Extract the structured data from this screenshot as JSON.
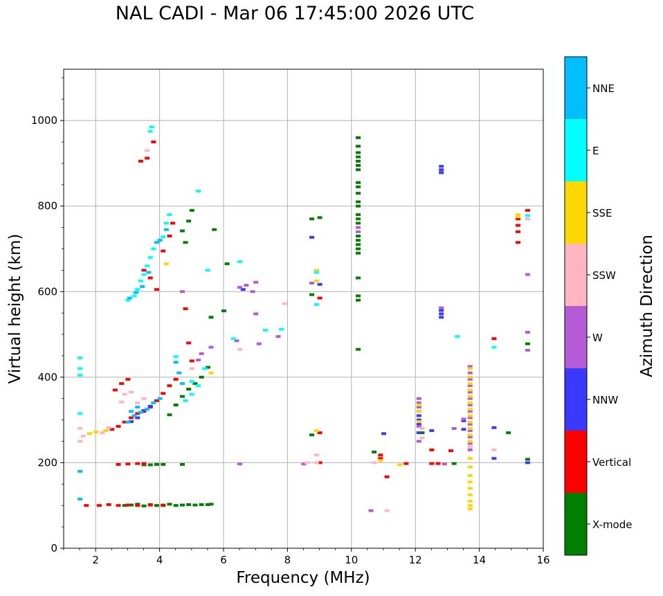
{
  "chart_data": {
    "type": "scatter",
    "title": "NAL CADI - Mar 06 17:45:00 2026 UTC",
    "xlabel": "Frequency (MHz)",
    "ylabel": "Virtual height (km)",
    "xlim": [
      1,
      16
    ],
    "ylim": [
      0,
      1120
    ],
    "xticks": [
      2,
      4,
      6,
      8,
      10,
      12,
      14,
      16
    ],
    "yticks": [
      0,
      200,
      400,
      600,
      800,
      1000
    ],
    "grid": true,
    "colorbar": {
      "label": "Azimuth Direction",
      "categories": [
        "X-mode",
        "Vertical",
        "NNW",
        "W",
        "SSW",
        "SSE",
        "E",
        "NNE"
      ],
      "colors": [
        "#008000",
        "#ff0000",
        "#3a3aff",
        "#b55bd6",
        "#ffb6c1",
        "#ffd700",
        "#00ffff",
        "#00bfff"
      ]
    },
    "series": [
      {
        "name": "X-mode",
        "points": [
          [
            2.9,
            100
          ],
          [
            3.1,
            101
          ],
          [
            3.3,
            103
          ],
          [
            3.5,
            99
          ],
          [
            3.7,
            102
          ],
          [
            3.9,
            100
          ],
          [
            4.1,
            101
          ],
          [
            4.3,
            103
          ],
          [
            4.5,
            100
          ],
          [
            4.7,
            101
          ],
          [
            4.9,
            102
          ],
          [
            5.1,
            101
          ],
          [
            5.3,
            102
          ],
          [
            5.5,
            102
          ],
          [
            5.6,
            103
          ],
          [
            3.5,
            195
          ],
          [
            3.7,
            195
          ],
          [
            3.9,
            196
          ],
          [
            4.1,
            196
          ],
          [
            4.7,
            196
          ],
          [
            4.3,
            312
          ],
          [
            4.5,
            335
          ],
          [
            4.7,
            355
          ],
          [
            4.9,
            372
          ],
          [
            5.1,
            385
          ],
          [
            5.3,
            400
          ],
          [
            5.5,
            423
          ],
          [
            5.6,
            540
          ],
          [
            5.0,
            790
          ],
          [
            4.9,
            765
          ],
          [
            4.7,
            742
          ],
          [
            6.0,
            555
          ],
          [
            10.2,
            465
          ],
          [
            10.2,
            580
          ],
          [
            10.2,
            590
          ],
          [
            10.2,
            632
          ],
          [
            10.2,
            690
          ],
          [
            10.2,
            700
          ],
          [
            10.2,
            710
          ],
          [
            10.2,
            720
          ],
          [
            10.2,
            730
          ],
          [
            10.2,
            760
          ],
          [
            10.2,
            770
          ],
          [
            10.2,
            780
          ],
          [
            10.2,
            800
          ],
          [
            10.2,
            810
          ],
          [
            10.2,
            830
          ],
          [
            10.2,
            845
          ],
          [
            10.2,
            855
          ],
          [
            10.2,
            885
          ],
          [
            10.2,
            895
          ],
          [
            10.2,
            905
          ],
          [
            10.2,
            915
          ],
          [
            10.2,
            925
          ],
          [
            10.2,
            940
          ],
          [
            10.2,
            960
          ],
          [
            8.75,
            265
          ],
          [
            8.75,
            593
          ],
          [
            8.75,
            770
          ],
          [
            9.0,
            773
          ],
          [
            10.7,
            225
          ],
          [
            13.2,
            198
          ],
          [
            14.9,
            270
          ],
          [
            15.5,
            208
          ],
          [
            15.5,
            478
          ],
          [
            5.7,
            745
          ],
          [
            6.1,
            665
          ],
          [
            4.8,
            715
          ],
          [
            12.2,
            270
          ]
        ]
      },
      {
        "name": "Vertical",
        "points": [
          [
            1.7,
            100
          ],
          [
            2.1,
            100
          ],
          [
            2.4,
            102
          ],
          [
            2.7,
            100
          ],
          [
            3.0,
            101
          ],
          [
            3.3,
            100
          ],
          [
            3.7,
            101
          ],
          [
            4.1,
            100
          ],
          [
            2.7,
            196
          ],
          [
            3.0,
            197
          ],
          [
            3.3,
            198
          ],
          [
            3.5,
            198
          ],
          [
            2.5,
            278
          ],
          [
            2.7,
            285
          ],
          [
            2.9,
            295
          ],
          [
            3.1,
            305
          ],
          [
            3.3,
            315
          ],
          [
            3.5,
            320
          ],
          [
            3.7,
            330
          ],
          [
            3.9,
            345
          ],
          [
            4.1,
            362
          ],
          [
            4.3,
            380
          ],
          [
            4.5,
            395
          ],
          [
            2.6,
            370
          ],
          [
            2.8,
            385
          ],
          [
            3.0,
            395
          ],
          [
            3.9,
            605
          ],
          [
            3.7,
            632
          ],
          [
            3.5,
            650
          ],
          [
            4.1,
            695
          ],
          [
            4.3,
            730
          ],
          [
            4.4,
            760
          ],
          [
            3.4,
            905
          ],
          [
            3.6,
            912
          ],
          [
            3.8,
            950
          ],
          [
            4.8,
            560
          ],
          [
            4.9,
            480
          ],
          [
            5.0,
            438
          ],
          [
            9.0,
            585
          ],
          [
            9.0,
            270
          ],
          [
            9.0,
            200
          ],
          [
            10.9,
            218
          ],
          [
            11.1,
            167
          ],
          [
            10.9,
            210
          ],
          [
            12.5,
            230
          ],
          [
            12.5,
            198
          ],
          [
            13.1,
            228
          ],
          [
            14.45,
            490
          ],
          [
            15.2,
            715
          ],
          [
            15.2,
            740
          ],
          [
            15.2,
            755
          ],
          [
            15.2,
            770
          ],
          [
            15.5,
            790
          ],
          [
            11.7,
            198
          ],
          [
            12.7,
            198
          ]
        ]
      },
      {
        "name": "NNW",
        "points": [
          [
            3.1,
            296
          ],
          [
            3.3,
            305
          ],
          [
            3.5,
            322
          ],
          [
            3.7,
            332
          ],
          [
            12.1,
            270
          ],
          [
            12.1,
            290
          ],
          [
            12.1,
            300
          ],
          [
            12.1,
            310
          ],
          [
            12.5,
            275
          ],
          [
            12.8,
            540
          ],
          [
            12.8,
            548
          ],
          [
            12.8,
            556
          ],
          [
            12.8,
            878
          ],
          [
            12.8,
            885
          ],
          [
            12.8,
            893
          ],
          [
            13.5,
            298
          ],
          [
            13.5,
            278
          ],
          [
            14.45,
            210
          ],
          [
            14.45,
            282
          ],
          [
            11.0,
            268
          ],
          [
            6.6,
            605
          ],
          [
            9.0,
            617
          ],
          [
            8.75,
            727
          ],
          [
            15.5,
            200
          ]
        ]
      },
      {
        "name": "W",
        "points": [
          [
            12.8,
            562
          ],
          [
            12.1,
            350
          ],
          [
            12.1,
            340
          ],
          [
            12.1,
            330
          ],
          [
            12.1,
            320
          ],
          [
            12.1,
            285
          ],
          [
            12.1,
            250
          ],
          [
            13.7,
            425
          ],
          [
            13.7,
            410
          ],
          [
            13.7,
            395
          ],
          [
            13.7,
            380
          ],
          [
            13.7,
            365
          ],
          [
            13.7,
            350
          ],
          [
            13.7,
            335
          ],
          [
            13.7,
            320
          ],
          [
            13.7,
            305
          ],
          [
            13.7,
            290
          ],
          [
            13.7,
            275
          ],
          [
            13.7,
            260
          ],
          [
            13.7,
            245
          ],
          [
            13.7,
            230
          ],
          [
            13.5,
            302
          ],
          [
            10.2,
            740
          ],
          [
            10.2,
            750
          ],
          [
            6.5,
            610
          ],
          [
            6.7,
            615
          ],
          [
            6.9,
            600
          ],
          [
            7.0,
            622
          ],
          [
            6.4,
            485
          ],
          [
            7.1,
            478
          ],
          [
            7.7,
            495
          ],
          [
            7.0,
            548
          ],
          [
            5.2,
            440
          ],
          [
            5.3,
            455
          ],
          [
            5.6,
            470
          ],
          [
            8.75,
            620
          ],
          [
            10.6,
            88
          ],
          [
            15.5,
            505
          ],
          [
            15.5,
            463
          ],
          [
            15.5,
            640
          ],
          [
            13.2,
            280
          ],
          [
            6.5,
            197
          ],
          [
            8.5,
            197
          ],
          [
            12.9,
            197
          ],
          [
            4.7,
            600
          ]
        ]
      },
      {
        "name": "SSW",
        "points": [
          [
            1.6,
            262
          ],
          [
            2.2,
            270
          ],
          [
            2.4,
            282
          ],
          [
            2.9,
            360
          ],
          [
            3.1,
            365
          ],
          [
            3.3,
            340
          ],
          [
            3.5,
            350
          ],
          [
            2.8,
            342
          ],
          [
            8.9,
            218
          ],
          [
            8.9,
            200
          ],
          [
            11.1,
            88
          ],
          [
            10.7,
            200
          ],
          [
            13.7,
            237
          ],
          [
            14.45,
            230
          ],
          [
            15.5,
            770
          ],
          [
            7.9,
            572
          ],
          [
            6.5,
            465
          ],
          [
            5.0,
            420
          ],
          [
            1.5,
            280
          ],
          [
            1.5,
            250
          ],
          [
            12.2,
            258
          ],
          [
            12.2,
            280
          ],
          [
            8.6,
            200
          ],
          [
            3.6,
            930
          ]
        ]
      },
      {
        "name": "SSE",
        "points": [
          [
            1.8,
            268
          ],
          [
            2.0,
            272
          ],
          [
            2.3,
            275
          ],
          [
            10.9,
            205
          ],
          [
            11.5,
            195
          ],
          [
            12.1,
            320
          ],
          [
            12.1,
            335
          ],
          [
            12.1,
            296
          ],
          [
            13.7,
            420
          ],
          [
            13.7,
            400
          ],
          [
            13.7,
            385
          ],
          [
            13.7,
            370
          ],
          [
            13.7,
            355
          ],
          [
            13.7,
            340
          ],
          [
            13.7,
            325
          ],
          [
            13.7,
            310
          ],
          [
            13.7,
            295
          ],
          [
            13.7,
            280
          ],
          [
            13.7,
            265
          ],
          [
            13.7,
            250
          ],
          [
            13.7,
            210
          ],
          [
            13.7,
            190
          ],
          [
            13.7,
            170
          ],
          [
            13.7,
            155
          ],
          [
            13.7,
            140
          ],
          [
            13.7,
            125
          ],
          [
            13.7,
            110
          ],
          [
            13.7,
            100
          ],
          [
            13.7,
            92
          ],
          [
            5.6,
            410
          ],
          [
            8.9,
            625
          ],
          [
            8.9,
            650
          ],
          [
            8.9,
            275
          ],
          [
            15.2,
            775
          ],
          [
            15.2,
            780
          ],
          [
            4.2,
            665
          ]
        ]
      },
      {
        "name": "E",
        "points": [
          [
            3.8,
            700
          ],
          [
            3.7,
            680
          ],
          [
            3.6,
            660
          ],
          [
            3.5,
            640
          ],
          [
            3.4,
            625
          ],
          [
            3.3,
            605
          ],
          [
            3.2,
            590
          ],
          [
            3.0,
            580
          ],
          [
            4.1,
            728
          ],
          [
            4.2,
            760
          ],
          [
            4.3,
            780
          ],
          [
            5.0,
            390
          ],
          [
            5.2,
            380
          ],
          [
            5.4,
            420
          ],
          [
            5.0,
            360
          ],
          [
            4.8,
            345
          ],
          [
            6.3,
            490
          ],
          [
            6.5,
            670
          ],
          [
            7.3,
            510
          ],
          [
            7.8,
            512
          ],
          [
            8.9,
            570
          ],
          [
            8.9,
            645
          ],
          [
            13.3,
            495
          ],
          [
            14.45,
            470
          ],
          [
            15.5,
            778
          ],
          [
            5.5,
            650
          ],
          [
            5.2,
            835
          ],
          [
            3.75,
            985
          ],
          [
            3.7,
            975
          ],
          [
            4.5,
            448
          ],
          [
            1.5,
            405
          ],
          [
            1.5,
            445
          ],
          [
            1.5,
            420
          ],
          [
            1.5,
            315
          ]
        ]
      },
      {
        "name": "NNE",
        "points": [
          [
            3.0,
            295
          ],
          [
            3.2,
            310
          ],
          [
            3.4,
            318
          ],
          [
            3.6,
            325
          ],
          [
            3.8,
            340
          ],
          [
            4.0,
            350
          ],
          [
            3.3,
            330
          ],
          [
            3.1,
            320
          ],
          [
            3.9,
            715
          ],
          [
            3.65,
            645
          ],
          [
            3.45,
            612
          ],
          [
            3.25,
            598
          ],
          [
            3.05,
            585
          ],
          [
            4.0,
            720
          ],
          [
            4.2,
            745
          ],
          [
            1.5,
            180
          ],
          [
            1.5,
            115
          ],
          [
            4.5,
            435
          ],
          [
            4.6,
            410
          ],
          [
            4.7,
            385
          ]
        ]
      }
    ]
  }
}
